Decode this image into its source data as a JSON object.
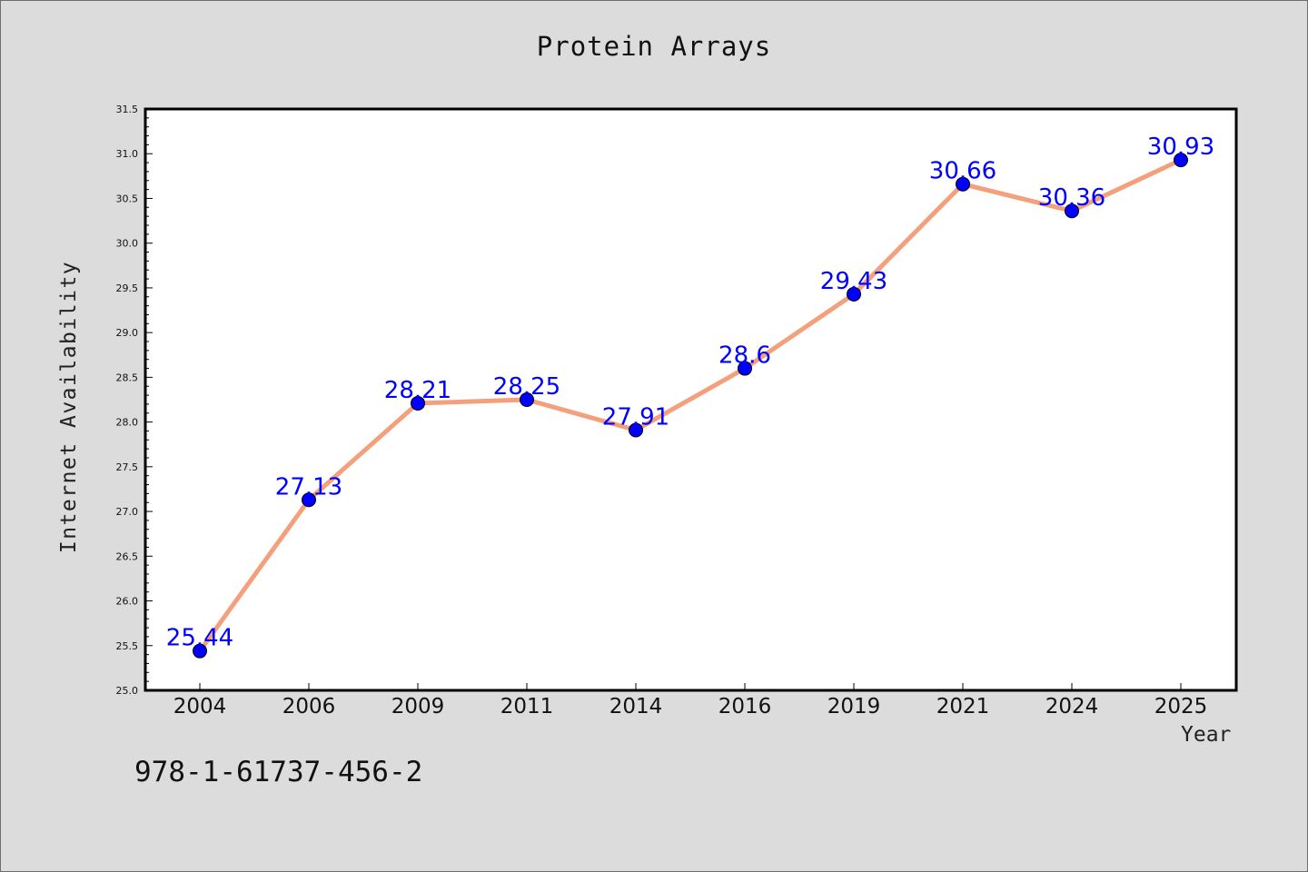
{
  "chart_data": {
    "type": "line",
    "title": "Protein Arrays",
    "xlabel": "Year",
    "ylabel": "Internet Availability",
    "categories": [
      "2004",
      "2006",
      "2009",
      "2011",
      "2014",
      "2016",
      "2019",
      "2021",
      "2024",
      "2025"
    ],
    "series": [
      {
        "values": [
          25.44,
          27.13,
          28.21,
          28.25,
          27.91,
          28.6,
          29.43,
          30.66,
          30.36,
          30.93
        ]
      }
    ],
    "data_labels": [
      "25.44",
      "27.13",
      "28.21",
      "28.25",
      "27.91",
      "28.6",
      "29.43",
      "30.66",
      "30.36",
      "30.93"
    ],
    "ylim": [
      25.0,
      31.5
    ],
    "yticks": [
      "25.0",
      "25.5",
      "26.0",
      "26.5",
      "27.0",
      "27.5",
      "28.0",
      "28.5",
      "29.0",
      "29.5",
      "30.0",
      "30.5",
      "31.0",
      "31.5"
    ],
    "grid": false,
    "legend": "none",
    "colors": {
      "line": "#f4a07c",
      "marker": "#0000ff",
      "label": "#0000ff",
      "page_background": "#dcdcdc",
      "plot_background": "#ffffff"
    }
  },
  "footer": {
    "isbn": "978-1-61737-456-2"
  }
}
